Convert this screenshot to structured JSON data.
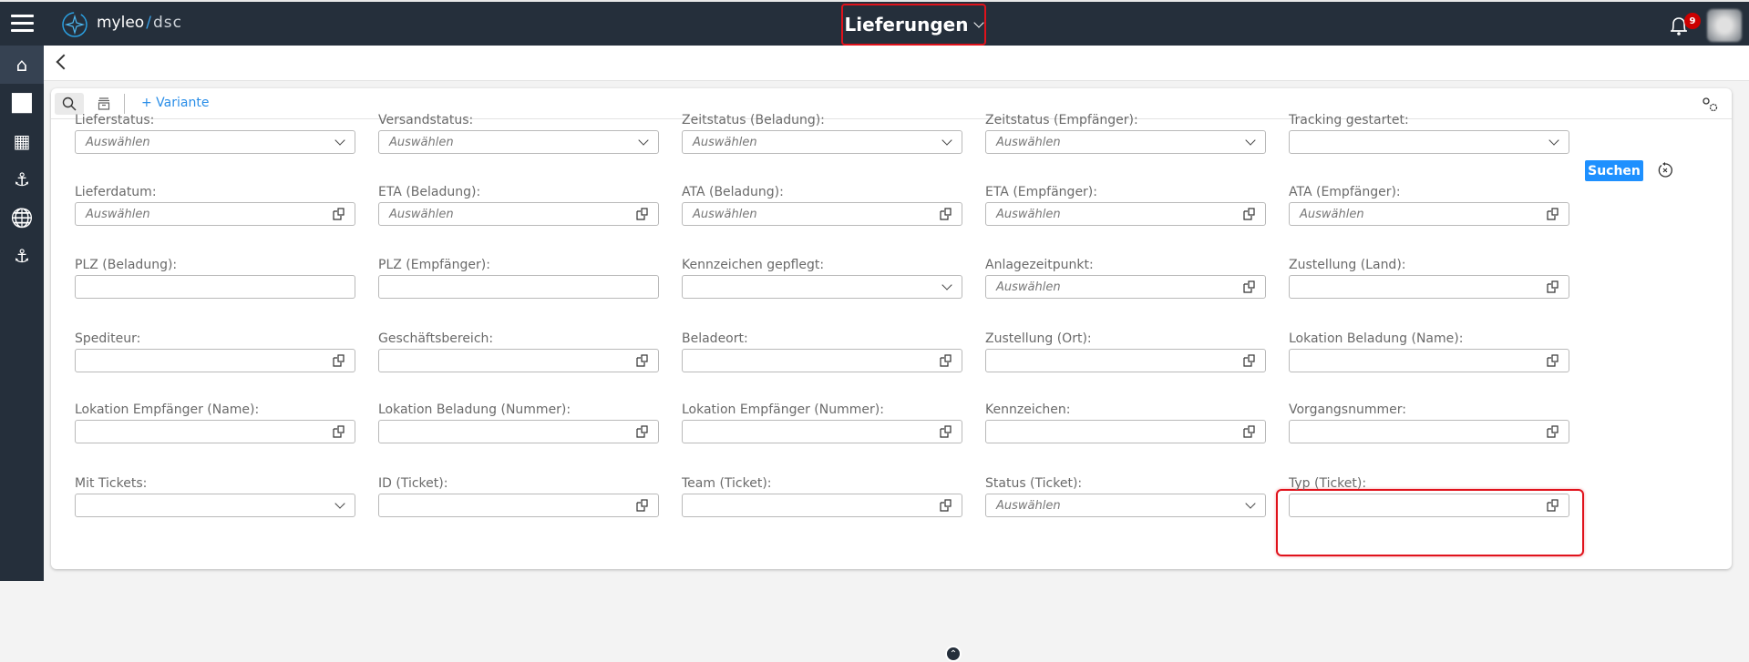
{
  "header": {
    "brand": "myleo",
    "brand_sub": "dsc",
    "title": "Lieferungen",
    "notification_count": "9",
    "highlight_color": "#e0121b"
  },
  "sidebar": {
    "items": [
      {
        "icon": "home-icon",
        "glyph": "⌂",
        "active": true
      },
      {
        "icon": "chart-icon",
        "glyph": "📊"
      },
      {
        "icon": "dashboard-icon",
        "glyph": "▦"
      },
      {
        "icon": "anchor-icon",
        "glyph": "⚓"
      },
      {
        "icon": "globe-icon",
        "glyph": "🌐"
      },
      {
        "icon": "anchor-icon",
        "glyph": "⚓"
      }
    ]
  },
  "toolbar": {
    "variant_label": "+ Variante",
    "search_button": "Suchen",
    "accent_color": "#1e90ff"
  },
  "filters": [
    [
      {
        "label": "Lieferstatus:",
        "type": "select",
        "placeholder": "Auswählen"
      },
      {
        "label": "Versandstatus:",
        "type": "select",
        "placeholder": "Auswählen"
      },
      {
        "label": "Zeitstatus (Beladung):",
        "type": "select",
        "placeholder": "Auswählen"
      },
      {
        "label": "Zeitstatus (Empfänger):",
        "type": "select",
        "placeholder": "Auswählen"
      },
      {
        "label": "Tracking gestartet:",
        "type": "select",
        "placeholder": ""
      }
    ],
    [
      {
        "label": "Lieferdatum:",
        "type": "picker",
        "placeholder": "Auswählen"
      },
      {
        "label": "ETA (Beladung):",
        "type": "picker",
        "placeholder": "Auswählen"
      },
      {
        "label": "ATA (Beladung):",
        "type": "picker",
        "placeholder": "Auswählen"
      },
      {
        "label": "ETA (Empfänger):",
        "type": "picker",
        "placeholder": "Auswählen"
      },
      {
        "label": "ATA (Empfänger):",
        "type": "picker",
        "placeholder": "Auswählen"
      }
    ],
    [
      {
        "label": "PLZ (Beladung):",
        "type": "text",
        "placeholder": ""
      },
      {
        "label": "PLZ (Empfänger):",
        "type": "text",
        "placeholder": ""
      },
      {
        "label": "Kennzeichen gepflegt:",
        "type": "select",
        "placeholder": ""
      },
      {
        "label": "Anlagezeitpunkt:",
        "type": "picker",
        "placeholder": "Auswählen"
      },
      {
        "label": "Zustellung (Land):",
        "type": "picker",
        "placeholder": ""
      }
    ],
    [
      {
        "label": "Spediteur:",
        "type": "picker",
        "placeholder": ""
      },
      {
        "label": "Geschäftsbereich:",
        "type": "picker",
        "placeholder": ""
      },
      {
        "label": "Beladeort:",
        "type": "picker",
        "placeholder": ""
      },
      {
        "label": "Zustellung (Ort):",
        "type": "picker",
        "placeholder": ""
      },
      {
        "label": "Lokation Beladung (Name):",
        "type": "picker",
        "placeholder": ""
      }
    ],
    [
      {
        "label": "Lokation Empfänger (Name):",
        "type": "picker",
        "placeholder": ""
      },
      {
        "label": "Lokation Beladung (Nummer):",
        "type": "picker",
        "placeholder": ""
      },
      {
        "label": "Lokation Empfänger (Nummer):",
        "type": "picker",
        "placeholder": ""
      },
      {
        "label": "Kennzeichen:",
        "type": "picker",
        "placeholder": ""
      },
      {
        "label": "Vorgangsnummer:",
        "type": "picker",
        "placeholder": ""
      }
    ],
    [
      {
        "label": "Mit Tickets:",
        "type": "select",
        "placeholder": ""
      },
      {
        "label": "ID (Ticket):",
        "type": "picker",
        "placeholder": ""
      },
      {
        "label": "Team (Ticket):",
        "type": "picker",
        "placeholder": ""
      },
      {
        "label": "Status (Ticket):",
        "type": "select",
        "placeholder": "Auswählen"
      },
      {
        "label": "Typ (Ticket):",
        "type": "picker",
        "placeholder": ""
      }
    ]
  ]
}
